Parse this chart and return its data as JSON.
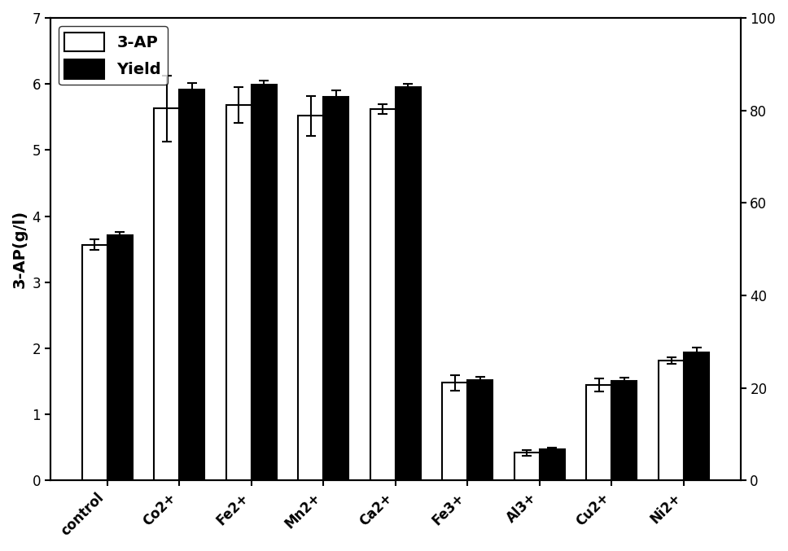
{
  "categories": [
    "control",
    "Co2+",
    "Fe2+",
    "Mn2+",
    "Ca2+",
    "Fe3+",
    "Al3+",
    "Cu2+",
    "Ni2+"
  ],
  "ap_values": [
    3.57,
    5.63,
    5.68,
    5.52,
    5.62,
    1.48,
    0.42,
    1.45,
    1.82
  ],
  "yield_values": [
    53.0,
    84.5,
    85.5,
    83.0,
    85.0,
    21.7,
    6.7,
    21.5,
    27.7
  ],
  "ap_errors": [
    0.08,
    0.5,
    0.27,
    0.3,
    0.07,
    0.12,
    0.04,
    0.1,
    0.05
  ],
  "yield_errors": [
    0.7,
    1.4,
    1.0,
    1.4,
    0.7,
    0.7,
    0.4,
    0.7,
    1.0
  ],
  "ap_color": "#ffffff",
  "ap_edgecolor": "#000000",
  "yield_color": "#000000",
  "ylabel_left": "3-AP(g/l)",
  "ylim_left": [
    0,
    7
  ],
  "ylim_right": [
    0,
    100
  ],
  "yticks_left": [
    0,
    1,
    2,
    3,
    4,
    5,
    6,
    7
  ],
  "yticks_right": [
    0,
    20,
    40,
    60,
    80,
    100
  ],
  "legend_labels": [
    "3-AP",
    "Yield"
  ],
  "bar_width": 0.35,
  "background_color": "#ffffff",
  "label_fontsize": 14,
  "tick_fontsize": 12,
  "legend_fontsize": 14
}
